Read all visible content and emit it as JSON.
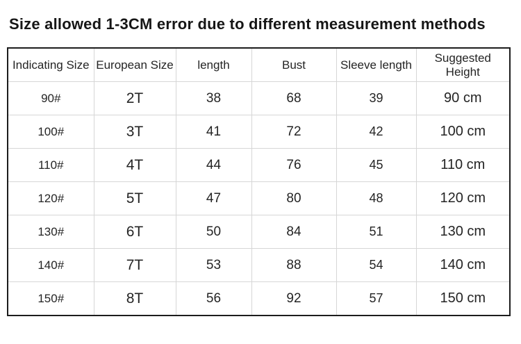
{
  "title": "Size allowed 1-3CM error due to different measurement methods",
  "table": {
    "columns": [
      "Indicating Size",
      "European Size",
      "length",
      "Bust",
      "Sleeve length",
      "Suggested Height"
    ],
    "rows": [
      [
        "90#",
        "2T",
        "38",
        "68",
        "39",
        "90 cm"
      ],
      [
        "100#",
        "3T",
        "41",
        "72",
        "42",
        "100 cm"
      ],
      [
        "110#",
        "4T",
        "44",
        "76",
        "45",
        "110 cm"
      ],
      [
        "120#",
        "5T",
        "47",
        "80",
        "48",
        "120 cm"
      ],
      [
        "130#",
        "6T",
        "50",
        "84",
        "51",
        "130 cm"
      ],
      [
        "140#",
        "7T",
        "53",
        "88",
        "54",
        "140 cm"
      ],
      [
        "150#",
        "8T",
        "56",
        "92",
        "57",
        "150 cm"
      ]
    ]
  },
  "chart_data": {
    "type": "table",
    "title": "Size allowed 1-3CM error due to different measurement methods",
    "columns": [
      "Indicating Size",
      "European Size",
      "length",
      "Bust",
      "Sleeve length",
      "Suggested Height"
    ],
    "rows": [
      [
        "90#",
        "2T",
        "38",
        "68",
        "39",
        "90 cm"
      ],
      [
        "100#",
        "3T",
        "41",
        "72",
        "42",
        "100 cm"
      ],
      [
        "110#",
        "4T",
        "44",
        "76",
        "45",
        "110 cm"
      ],
      [
        "120#",
        "5T",
        "47",
        "80",
        "48",
        "120 cm"
      ],
      [
        "130#",
        "6T",
        "50",
        "84",
        "51",
        "130 cm"
      ],
      [
        "140#",
        "7T",
        "53",
        "88",
        "54",
        "140 cm"
      ],
      [
        "150#",
        "8T",
        "56",
        "92",
        "57",
        "150 cm"
      ]
    ],
    "colors": {
      "grid": "#d6d6d6",
      "outer_border": "#1c1c1c",
      "text": "#242424",
      "background": "#ffffff"
    }
  }
}
